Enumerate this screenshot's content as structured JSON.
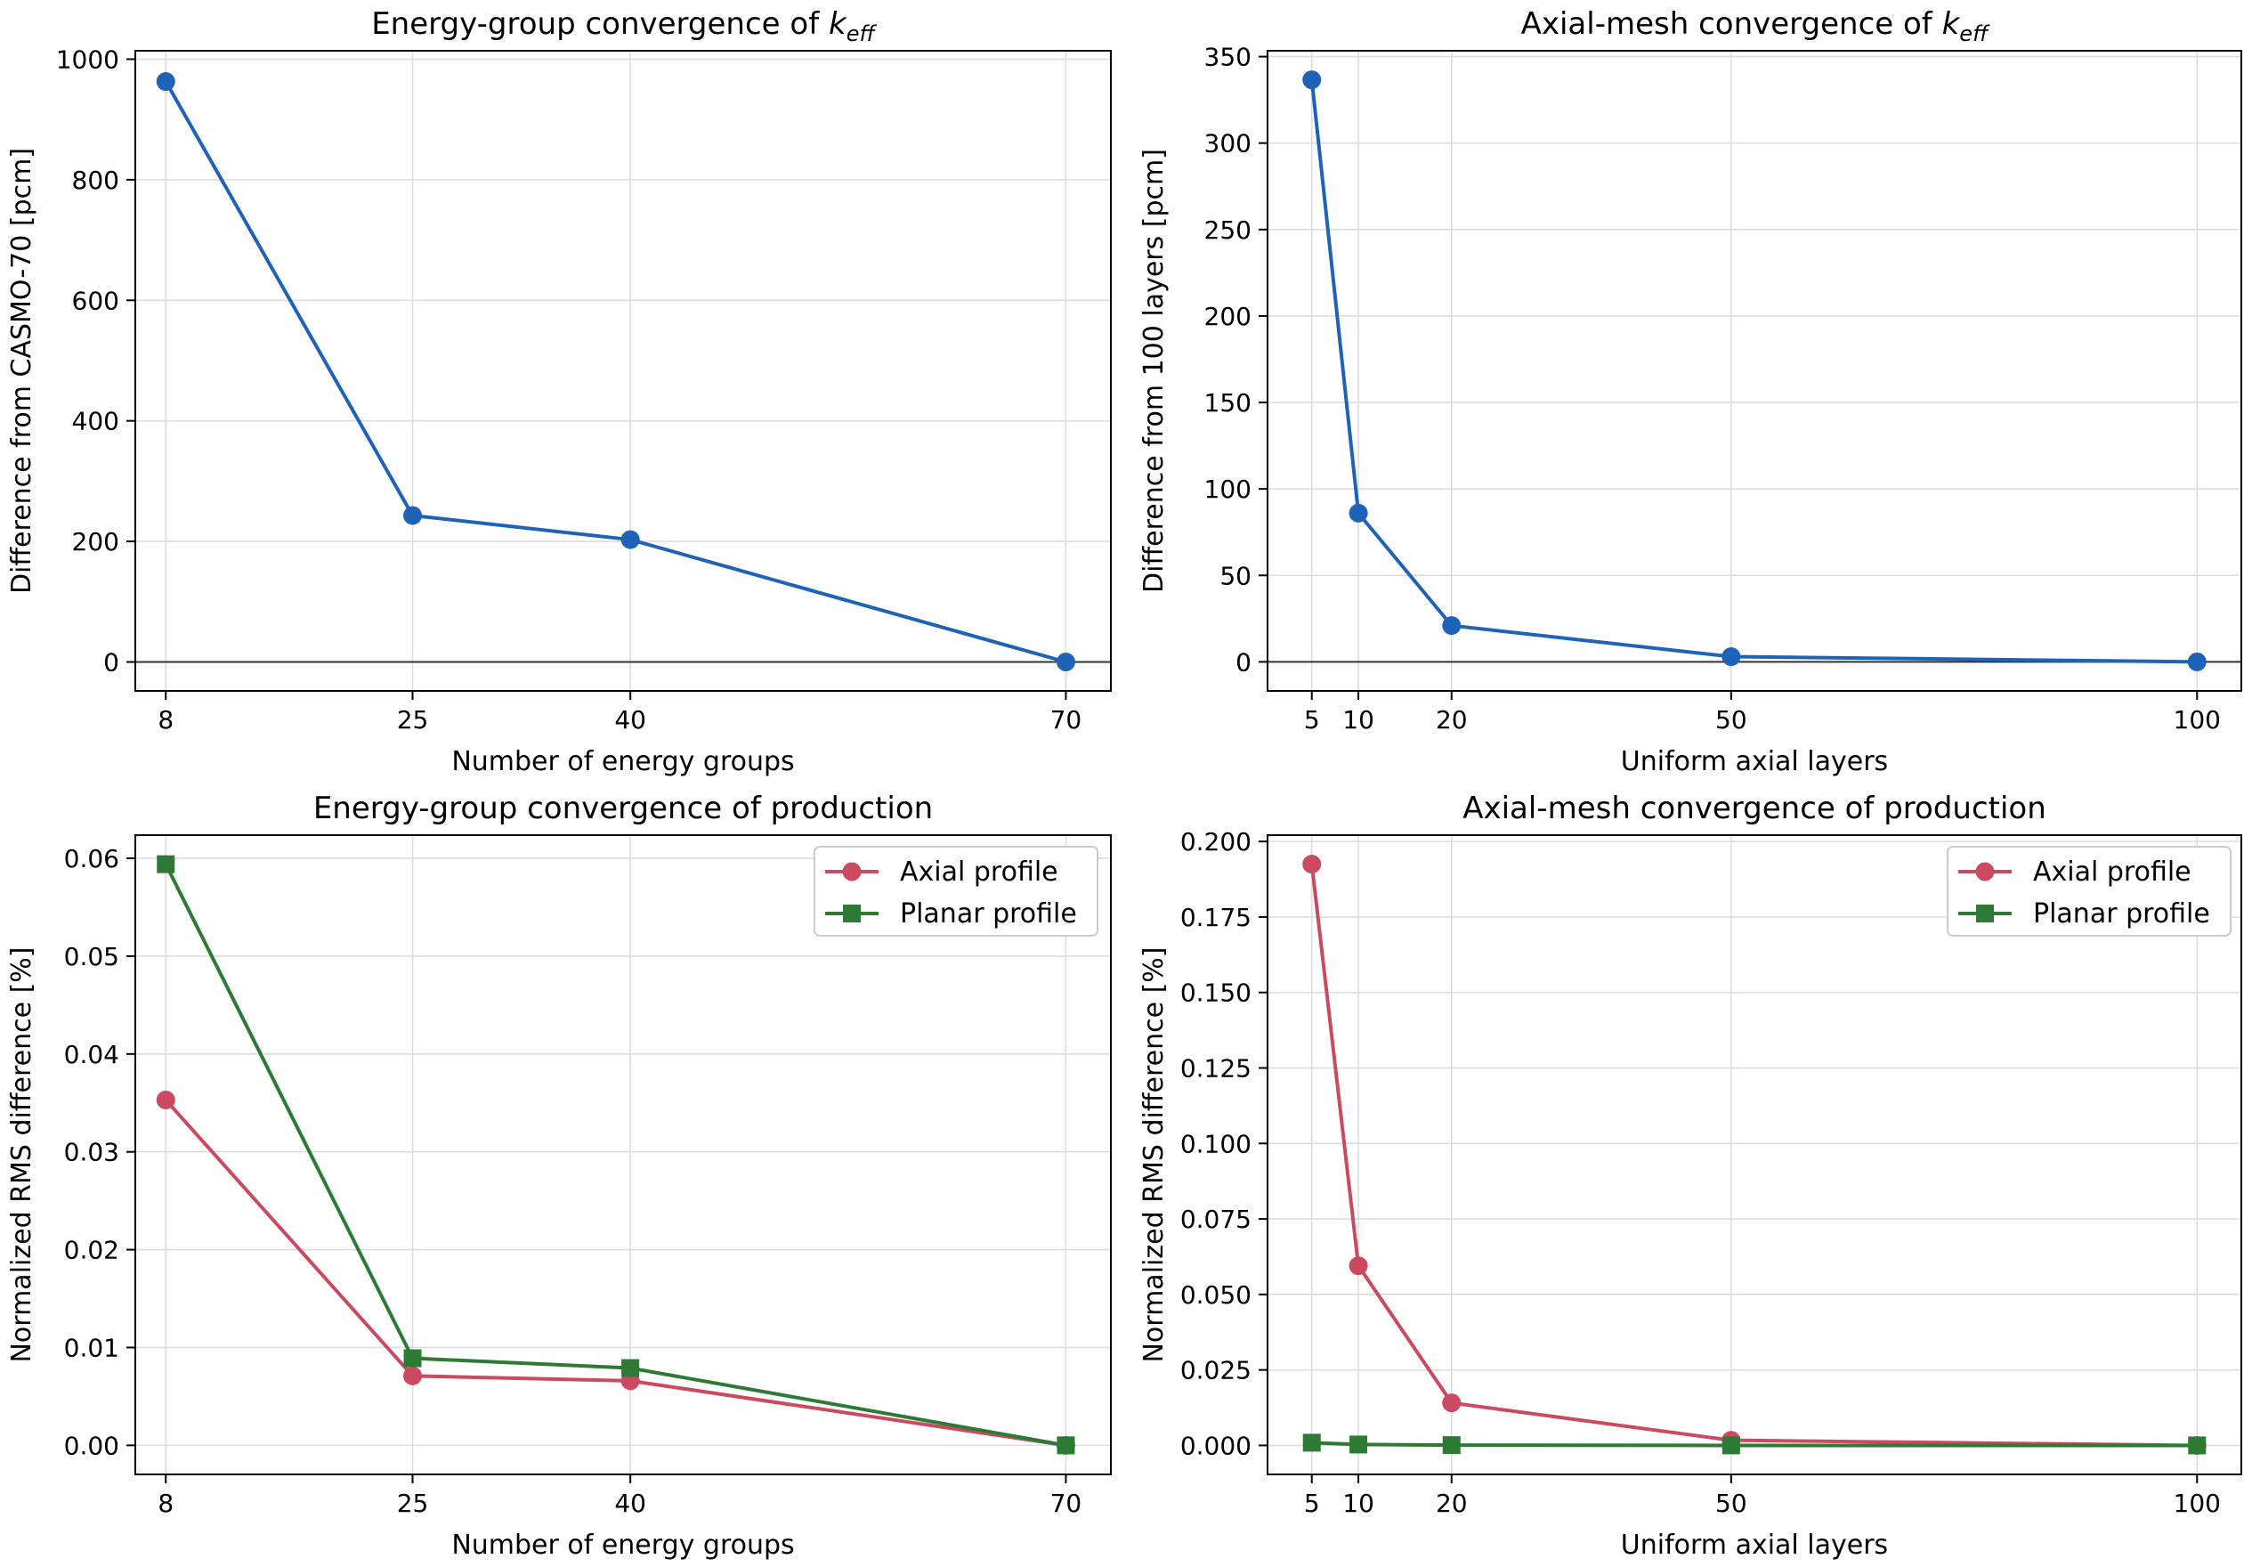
{
  "colors": {
    "blue": "#1f63b8",
    "red": "#cc4a5f",
    "green": "#2d7a35",
    "grid": "#dddddd",
    "zero_line": "#333333"
  },
  "chart_data": [
    {
      "type": "line",
      "title_prefix": "Energy-group convergence of ",
      "title_symbol": "k",
      "title_subscript": "eff",
      "xlabel": "Number of energy groups",
      "ylabel": "Difference from CASMO-70 [pcm]",
      "xlim": [
        5.9,
        73.1
      ],
      "ylim": [
        -48,
        1014
      ],
      "xticks": [
        8,
        25,
        40,
        70
      ],
      "yticks": [
        0,
        200,
        400,
        600,
        800,
        1000
      ],
      "grid": true,
      "zero_line": true,
      "series": [
        {
          "x": [
            8,
            25,
            40,
            70
          ],
          "values": [
            963,
            243,
            203,
            0
          ],
          "color": "blue",
          "marker": "circle"
        }
      ]
    },
    {
      "type": "line",
      "title_prefix": "Axial-mesh convergence of ",
      "title_symbol": "k",
      "title_subscript": "eff",
      "xlabel": "Uniform axial layers",
      "ylabel": "Difference from 100 layers [pcm]",
      "xlim": [
        0.25,
        104.75
      ],
      "ylim": [
        -16.8,
        353.4
      ],
      "xticks": [
        5,
        10,
        20,
        50,
        100
      ],
      "yticks": [
        0,
        50,
        100,
        150,
        200,
        250,
        300,
        350
      ],
      "grid": true,
      "zero_line": true,
      "series": [
        {
          "x": [
            5,
            10,
            20,
            50,
            100
          ],
          "values": [
            336.6,
            86,
            21,
            3,
            0
          ],
          "color": "blue",
          "marker": "circle"
        }
      ]
    },
    {
      "type": "line",
      "title": "Energy-group convergence of production",
      "xlabel": "Number of energy groups",
      "ylabel": "Normalized RMS difference [%]",
      "xlim": [
        5.9,
        73.1
      ],
      "ylim": [
        -0.00297,
        0.06237
      ],
      "xticks": [
        8,
        25,
        40,
        70
      ],
      "yticks": [
        "0.00",
        "0.01",
        "0.02",
        "0.03",
        "0.04",
        "0.05",
        "0.06"
      ],
      "grid": true,
      "legend": "top-right",
      "series": [
        {
          "name": "Axial profile",
          "x": [
            8,
            25,
            40,
            70
          ],
          "values": [
            0.0353,
            0.0071,
            0.0066,
            0.0
          ],
          "color": "red",
          "marker": "circle"
        },
        {
          "name": "Planar profile",
          "x": [
            8,
            25,
            40,
            70
          ],
          "values": [
            0.0594,
            0.0089,
            0.0079,
            0.0
          ],
          "color": "green",
          "marker": "square"
        }
      ]
    },
    {
      "type": "line",
      "title": "Axial-mesh convergence of production",
      "xlabel": "Uniform axial layers",
      "ylabel": "Normalized RMS difference [%]",
      "xlim": [
        0.25,
        104.75
      ],
      "ylim": [
        -0.0096,
        0.2021
      ],
      "xticks": [
        5,
        10,
        20,
        50,
        100
      ],
      "yticks": [
        "0.000",
        "0.025",
        "0.050",
        "0.075",
        "0.100",
        "0.125",
        "0.150",
        "0.175",
        "0.200"
      ],
      "grid": true,
      "legend": "top-right",
      "series": [
        {
          "name": "Axial profile",
          "x": [
            5,
            10,
            20,
            50,
            100
          ],
          "values": [
            0.1925,
            0.0595,
            0.0141,
            0.0017,
            0.0
          ],
          "color": "red",
          "marker": "circle"
        },
        {
          "name": "Planar profile",
          "x": [
            5,
            10,
            20,
            50,
            100
          ],
          "values": [
            0.0009,
            0.0003,
            0.0001,
            0.0,
            0.0
          ],
          "color": "green",
          "marker": "square"
        }
      ]
    }
  ]
}
